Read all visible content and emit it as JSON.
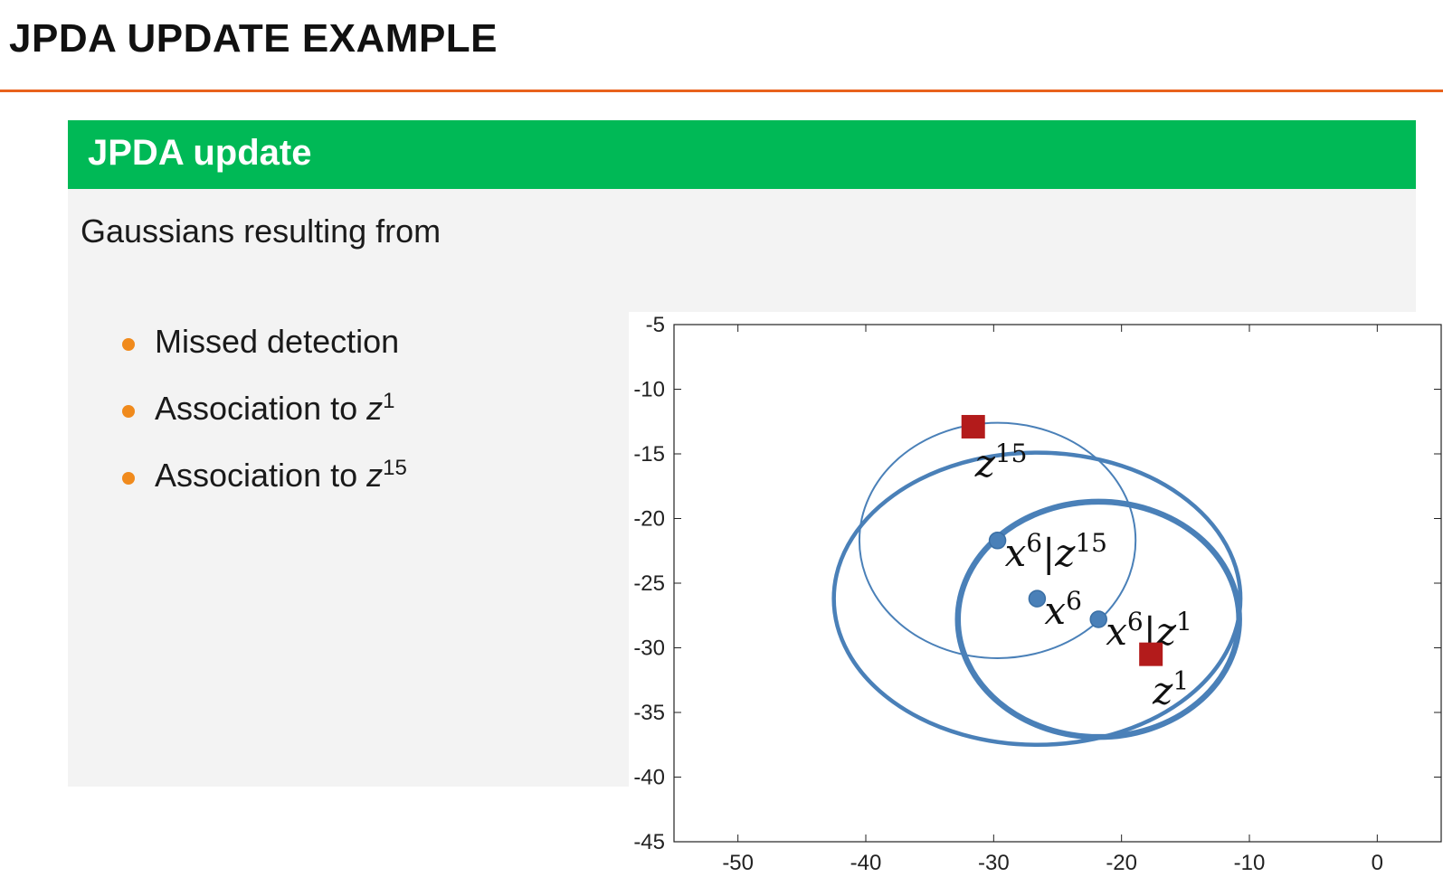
{
  "slide": {
    "title": "JPDA UPDATE EXAMPLE",
    "accent_color": "#e8621c"
  },
  "block": {
    "title": "JPDA update",
    "header_color": "#00b956",
    "intro": "Gaussians resulting from",
    "bullets": [
      {
        "text": "Missed detection",
        "z": "",
        "sup": ""
      },
      {
        "text": "Association to ",
        "z": "z",
        "sup": "1"
      },
      {
        "text": "Association to ",
        "z": "z",
        "sup": "15"
      }
    ],
    "bullet_color": "#f08a1c"
  },
  "chart_data": {
    "type": "scatter",
    "xlim": [
      -55,
      5
    ],
    "ylim": [
      -45,
      -5
    ],
    "xticks": [
      "-50",
      "-40",
      "-30",
      "-20",
      "-10",
      "0"
    ],
    "yticks": [
      "-5",
      "-10",
      "-15",
      "-20",
      "-25",
      "-30",
      "-35",
      "-40",
      "-45"
    ],
    "grid": false,
    "ellipse_color": "#4a80b8",
    "measurement_color": "#b31b1b",
    "measurements": [
      {
        "x": -31.6,
        "y": -12.9,
        "label_base": "z",
        "label_sup": "15"
      },
      {
        "x": -17.7,
        "y": -30.5,
        "label_base": "z",
        "label_sup": "1"
      }
    ],
    "states": [
      {
        "x": -29.7,
        "y": -21.7,
        "label_base": "x",
        "label_sup": "6",
        "label_suffix": "|z",
        "label_suffix_sup": "15"
      },
      {
        "x": -26.6,
        "y": -26.2,
        "label_base": "x",
        "label_sup": "6",
        "label_suffix": "",
        "label_suffix_sup": ""
      },
      {
        "x": -21.8,
        "y": -27.8,
        "label_base": "x",
        "label_sup": "6",
        "label_suffix": "|z",
        "label_suffix_sup": "1"
      }
    ],
    "ellipses": [
      {
        "name": "",
        "cx": -29.7,
        "cy": -21.7,
        "rx": 10.8,
        "ry": 9.1,
        "weight": "thin"
      },
      {
        "name": "",
        "cx": -26.6,
        "cy": -26.2,
        "rx": 15.9,
        "ry": 11.3,
        "weight": "medium"
      },
      {
        "name": "",
        "cx": -21.8,
        "cy": -27.8,
        "rx": 11.0,
        "ry": 9.1,
        "weight": "thick"
      }
    ]
  }
}
